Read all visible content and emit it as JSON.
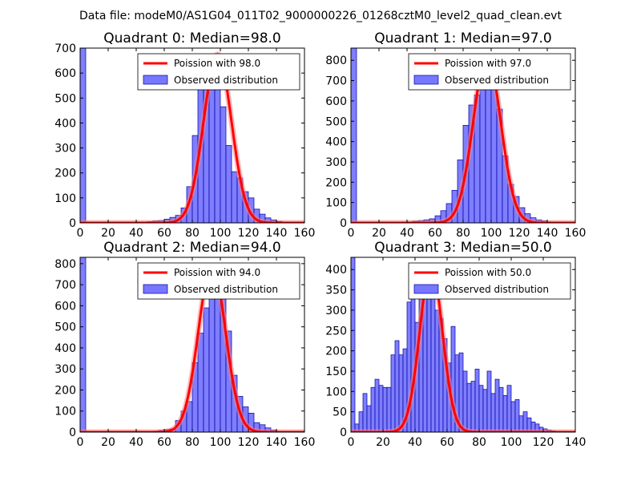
{
  "figure_title": "Data file: modeM0/AS1G04_011T02_9000000226_01268cztM0_level2_quad_clean.evt",
  "colors": {
    "histogram_fill": "#7777ff",
    "histogram_edge": "#0000a0",
    "poisson_line": "#ff0000",
    "poisson_glow": "#ff8080"
  },
  "chart_data": [
    {
      "type": "bar",
      "title": "Quadrant 0: Median=98.0",
      "median": 98.0,
      "xlim": [
        0,
        160
      ],
      "ylim": [
        0,
        700
      ],
      "xticks": [
        "0",
        "20",
        "40",
        "60",
        "80",
        "100",
        "120",
        "140",
        "160"
      ],
      "yticks": [
        "0",
        "100",
        "200",
        "300",
        "400",
        "500",
        "600",
        "700"
      ],
      "legend": {
        "location": "upper-right",
        "line_label": "Poission with 98.0",
        "bar_label": "Observed distribution"
      },
      "bin_width": 4,
      "bin_starts": [
        0,
        44,
        48,
        52,
        56,
        60,
        64,
        68,
        72,
        76,
        80,
        84,
        88,
        92,
        96,
        100,
        104,
        108,
        112,
        116,
        120,
        124,
        128,
        132,
        136,
        140
      ],
      "counts": [
        700,
        3,
        5,
        8,
        10,
        15,
        22,
        30,
        60,
        145,
        350,
        570,
        620,
        610,
        590,
        465,
        310,
        205,
        180,
        125,
        100,
        55,
        35,
        20,
        12,
        6
      ],
      "poisson": {
        "mean": 98,
        "peak": 675,
        "sigma": 9.9
      }
    },
    {
      "type": "bar",
      "title": "Quadrant 1: Median=97.0",
      "median": 97.0,
      "xlim": [
        0,
        160
      ],
      "ylim": [
        0,
        860
      ],
      "xticks": [
        "0",
        "20",
        "40",
        "60",
        "80",
        "100",
        "120",
        "140",
        "160"
      ],
      "yticks": [
        "0",
        "100",
        "200",
        "300",
        "400",
        "500",
        "600",
        "700",
        "800"
      ],
      "legend": {
        "location": "upper-right",
        "line_label": "Poission with 97.0",
        "bar_label": "Observed distribution"
      },
      "bin_width": 4,
      "bin_starts": [
        0,
        40,
        44,
        48,
        52,
        56,
        60,
        64,
        68,
        72,
        76,
        80,
        84,
        88,
        92,
        96,
        100,
        104,
        108,
        112,
        116,
        120,
        124,
        128,
        132,
        136,
        140
      ],
      "counts": [
        860,
        5,
        8,
        12,
        15,
        20,
        35,
        60,
        95,
        160,
        310,
        480,
        580,
        630,
        830,
        800,
        700,
        560,
        330,
        190,
        130,
        75,
        45,
        25,
        15,
        10,
        5
      ],
      "poisson": {
        "mean": 97,
        "peak": 820,
        "sigma": 9.85
      }
    },
    {
      "type": "bar",
      "title": "Quadrant 2: Median=94.0",
      "median": 94.0,
      "xlim": [
        0,
        160
      ],
      "ylim": [
        0,
        830
      ],
      "xticks": [
        "0",
        "20",
        "40",
        "60",
        "80",
        "100",
        "120",
        "140",
        "160"
      ],
      "yticks": [
        "0",
        "100",
        "200",
        "300",
        "400",
        "500",
        "600",
        "700",
        "800"
      ],
      "legend": {
        "location": "upper-right",
        "line_label": "Poission with 94.0",
        "bar_label": "Observed distribution"
      },
      "bin_width": 4,
      "bin_starts": [
        0,
        48,
        52,
        56,
        60,
        64,
        68,
        72,
        76,
        80,
        84,
        88,
        92,
        96,
        100,
        104,
        108,
        112,
        116,
        120,
        124,
        128,
        132,
        136
      ],
      "counts": [
        830,
        3,
        5,
        8,
        12,
        15,
        55,
        100,
        145,
        330,
        470,
        590,
        760,
        720,
        650,
        480,
        270,
        170,
        120,
        90,
        45,
        35,
        20,
        10
      ],
      "poisson": {
        "mean": 94,
        "peak": 790,
        "sigma": 9.7
      }
    },
    {
      "type": "bar",
      "title": "Quadrant 3: Median=50.0",
      "median": 50.0,
      "xlim": [
        0,
        140
      ],
      "ylim": [
        0,
        430
      ],
      "xticks": [
        "0",
        "20",
        "40",
        "60",
        "80",
        "100",
        "120",
        "140"
      ],
      "yticks": [
        "0",
        "50",
        "100",
        "150",
        "200",
        "250",
        "300",
        "350",
        "400"
      ],
      "legend": {
        "location": "upper-right",
        "line_label": "Poission with 50.0",
        "bar_label": "Observed distribution"
      },
      "bin_width": 2.5,
      "bin_starts": [
        0,
        2.5,
        5,
        7.5,
        10,
        12.5,
        15,
        17.5,
        20,
        22.5,
        25,
        27.5,
        30,
        32.5,
        35,
        37.5,
        40,
        42.5,
        45,
        47.5,
        50,
        52.5,
        55,
        57.5,
        60,
        62.5,
        65,
        67.5,
        70,
        72.5,
        75,
        77.5,
        80,
        82.5,
        85,
        87.5,
        90,
        92.5,
        95,
        97.5,
        100,
        102.5,
        105,
        107.5,
        110,
        112.5,
        115,
        117.5,
        120,
        122.5,
        125,
        127.5
      ],
      "counts": [
        430,
        20,
        50,
        95,
        65,
        110,
        130,
        115,
        110,
        110,
        190,
        225,
        190,
        205,
        320,
        345,
        270,
        400,
        345,
        400,
        330,
        300,
        280,
        230,
        170,
        260,
        190,
        195,
        150,
        120,
        125,
        155,
        115,
        105,
        150,
        95,
        130,
        110,
        90,
        115,
        75,
        80,
        40,
        50,
        35,
        25,
        20,
        12,
        8,
        5,
        3,
        2
      ],
      "poisson": {
        "mean": 50,
        "peak": 410,
        "sigma": 7.07
      }
    }
  ]
}
